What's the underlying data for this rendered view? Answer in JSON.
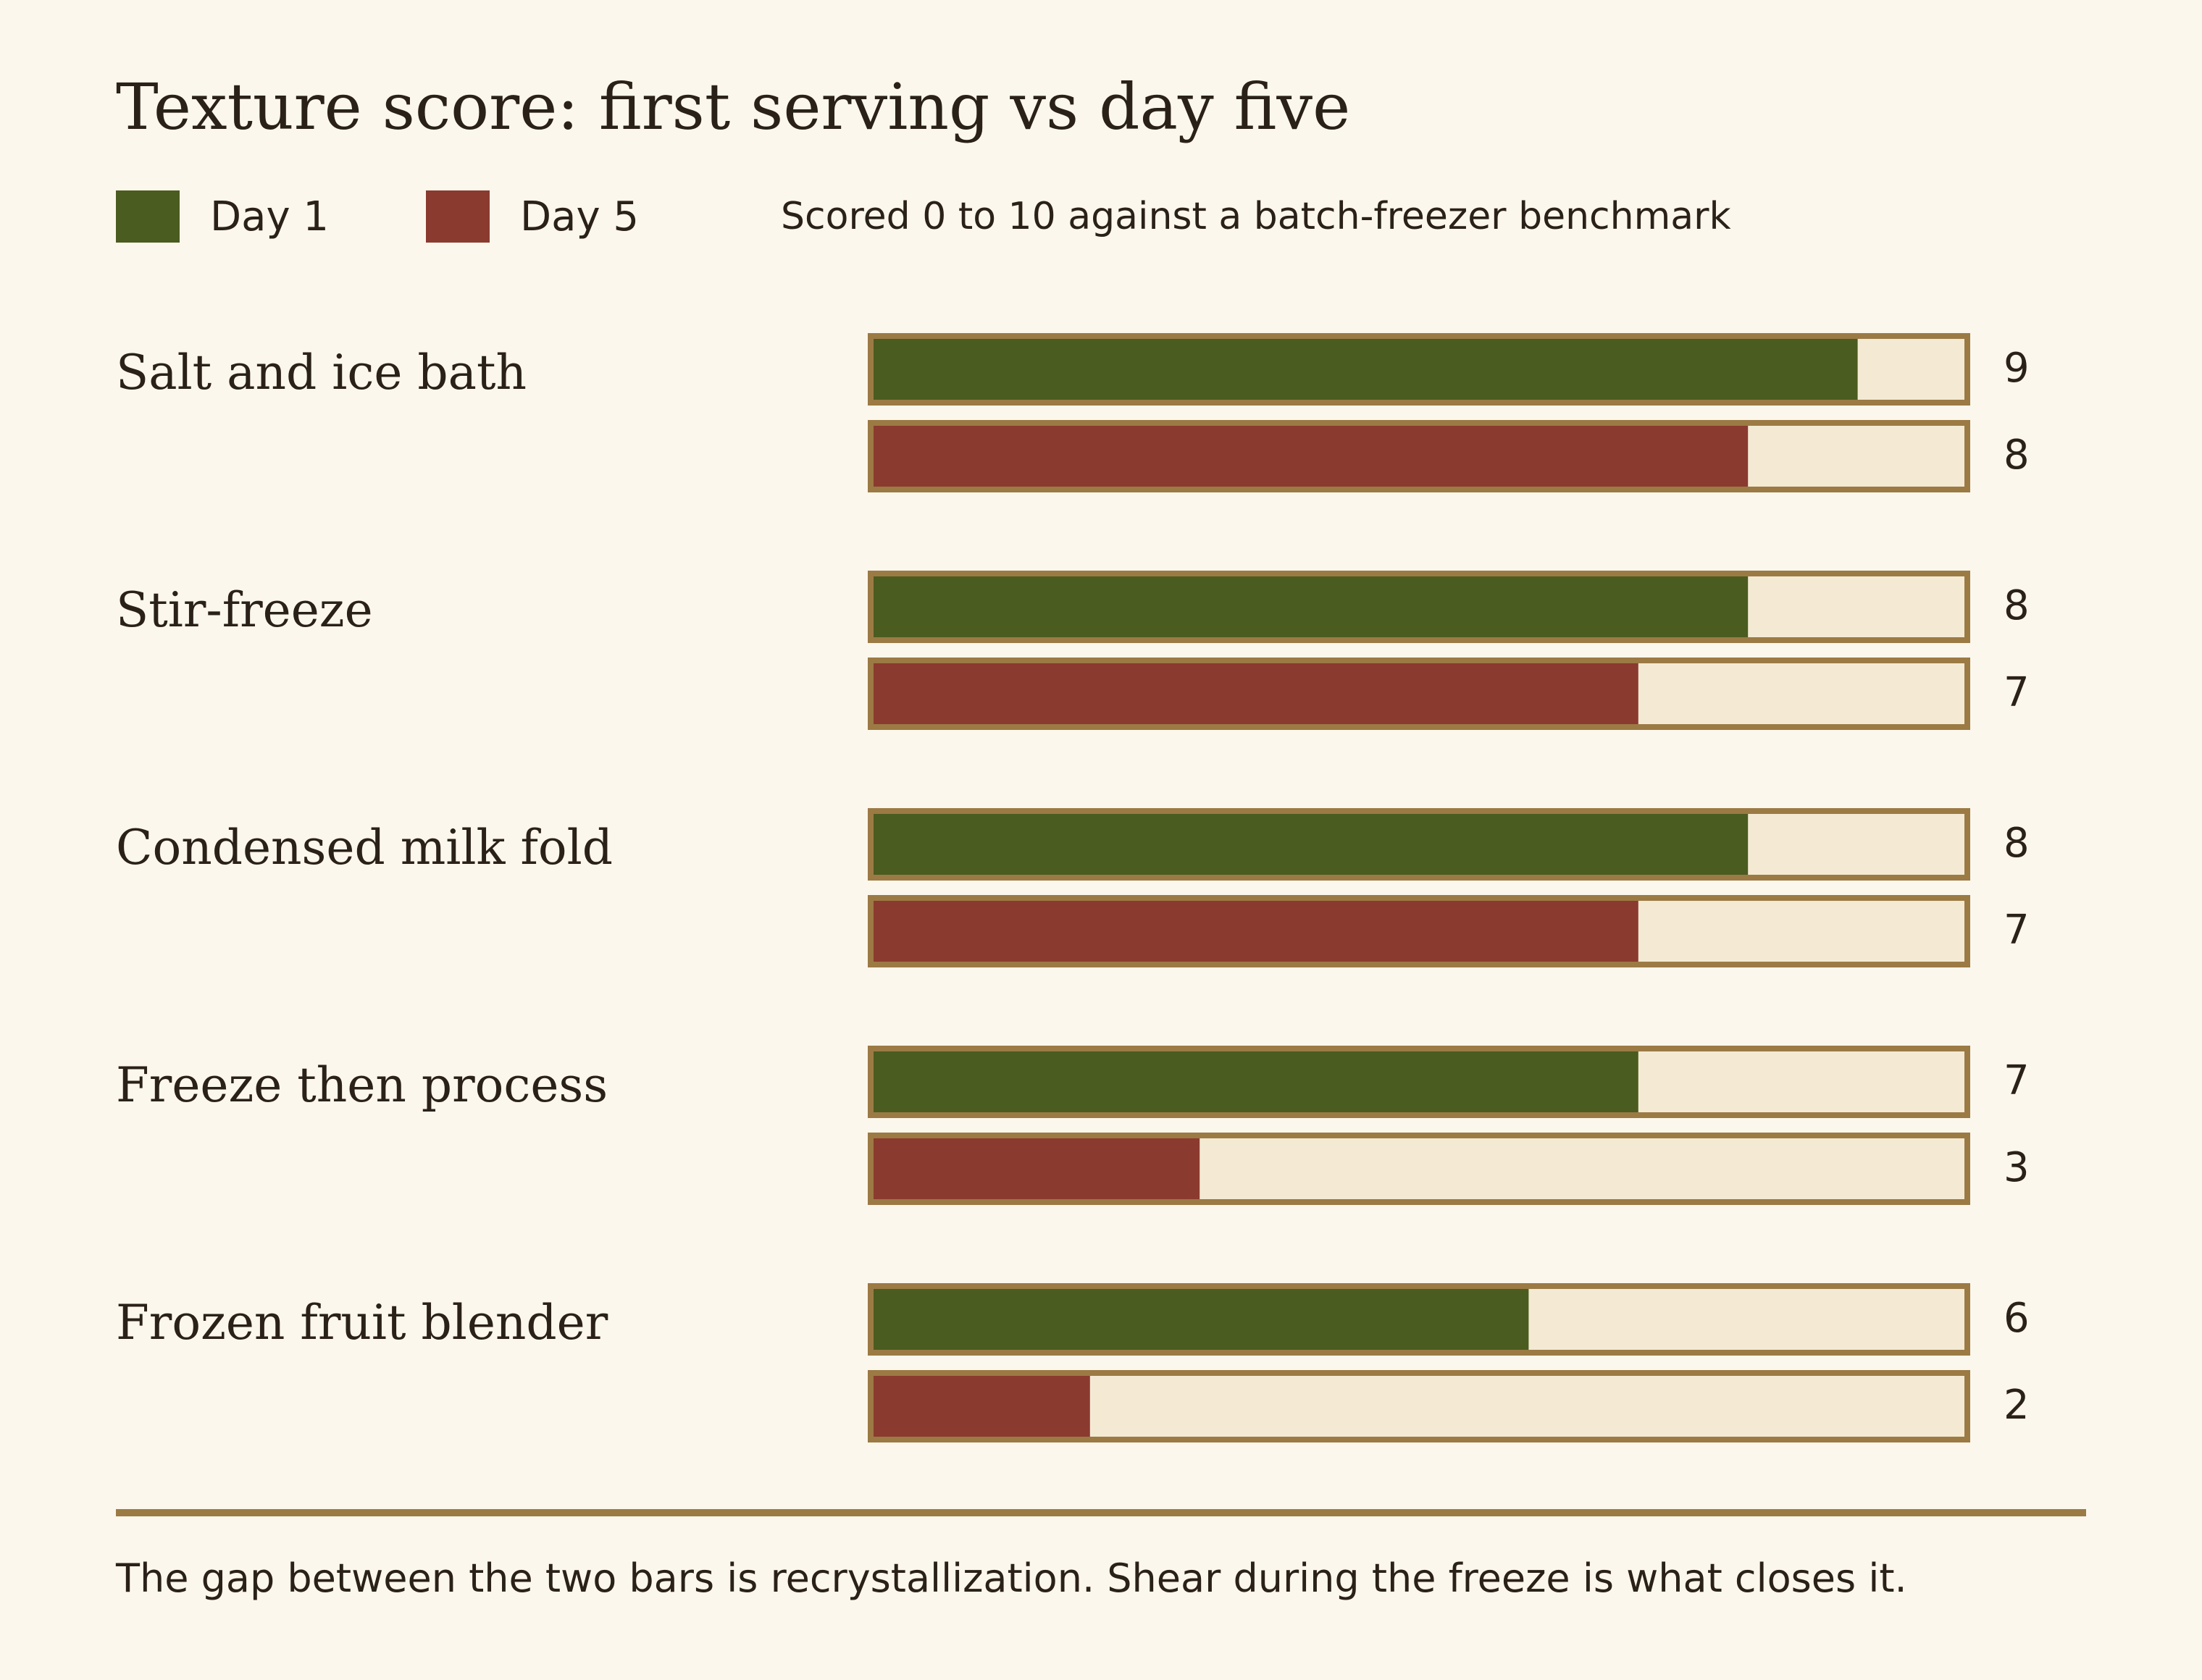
{
  "colors": {
    "background": "#fcf7ec",
    "day1": "#4a5c1f",
    "day5": "#8b3a2f",
    "track": "#f4ead4",
    "frame": "#9c7a44",
    "text": "#2a2119"
  },
  "chart_data": {
    "type": "bar",
    "orientation": "horizontal",
    "title": "Texture score: first serving vs day five",
    "note": "Scored 0 to 10 against a batch-freezer benchmark",
    "categories": [
      "Salt and ice bath",
      "Stir-freeze",
      "Condensed milk fold",
      "Freeze then process",
      "Frozen fruit blender"
    ],
    "series": [
      {
        "name": "Day 1",
        "color": "#4a5c1f",
        "values": [
          9,
          8,
          8,
          7,
          6
        ]
      },
      {
        "name": "Day 5",
        "color": "#8b3a2f",
        "values": [
          8,
          7,
          7,
          3,
          2
        ]
      }
    ],
    "xlim": [
      0,
      10
    ],
    "legend_position": "top-left",
    "grid": false,
    "footnote": "The gap between the two bars is recrystallization. Shear during the freeze is what closes it."
  }
}
